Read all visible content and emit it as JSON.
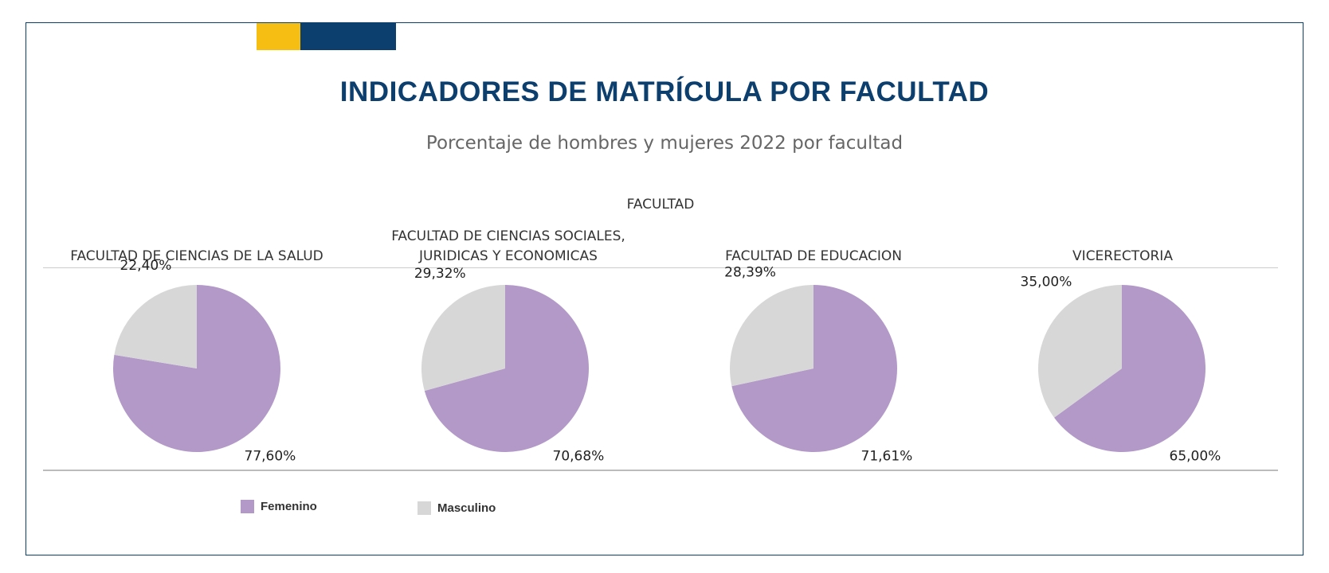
{
  "title": "INDICADORES DE MATRÍCULA POR FACULTAD",
  "subtitle": "Porcentaje de hombres y mujeres 2022 por facultad",
  "colors": {
    "brand_navy": "#0c3f6d",
    "brand_yellow": "#f6be12",
    "femenino": "#b399c8",
    "masculino": "#d7d7d7"
  },
  "chart_data": {
    "type": "pie",
    "header": "FACULTAD",
    "legend": [
      {
        "name": "Femenino",
        "color": "#b399c8"
      },
      {
        "name": "Masculino",
        "color": "#d7d7d7"
      }
    ],
    "legend_position": "bottom-left",
    "facets": [
      {
        "label_lines": [
          "FACULTAD DE CIENCIAS DE LA SALUD"
        ],
        "femenino": 77.6,
        "masculino": 22.4,
        "femenino_label": "77,60%",
        "masculino_label": "22,40%"
      },
      {
        "label_lines": [
          "FACULTAD DE CIENCIAS SOCIALES,",
          "JURIDICAS Y ECONOMICAS"
        ],
        "femenino": 70.68,
        "masculino": 29.32,
        "femenino_label": "70,68%",
        "masculino_label": "29,32%"
      },
      {
        "label_lines": [
          "FACULTAD DE EDUCACION"
        ],
        "femenino": 71.61,
        "masculino": 28.39,
        "femenino_label": "71,61%",
        "masculino_label": "28,39%"
      },
      {
        "label_lines": [
          "VICERECTORIA"
        ],
        "femenino": 65.0,
        "masculino": 35.0,
        "femenino_label": "65,00%",
        "masculino_label": "35,00%"
      }
    ]
  }
}
